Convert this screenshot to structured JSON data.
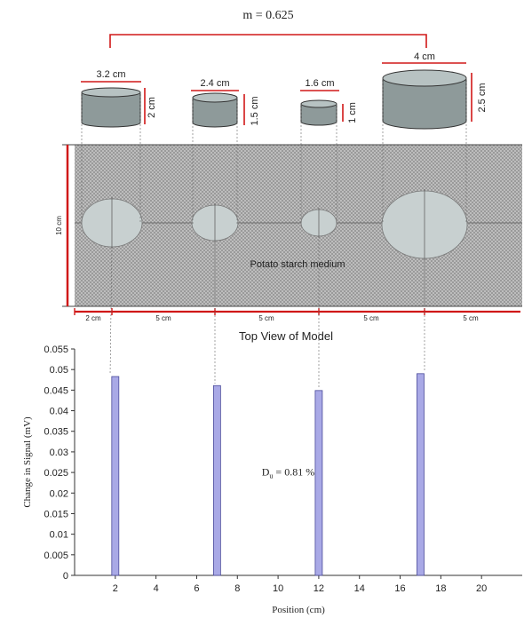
{
  "model": {
    "m_label": "m = 0.625",
    "cylinders": [
      {
        "diameter_label": "3.2 cm",
        "height_label": "2 cm"
      },
      {
        "diameter_label": "2.4 cm",
        "height_label": "1.5 cm"
      },
      {
        "diameter_label": "1.6 cm",
        "height_label": "1 cm"
      },
      {
        "diameter_label": "4 cm",
        "height_label": "2.5 cm"
      }
    ],
    "width_label": "10 cm",
    "medium_label": "Potato starch medium",
    "spacing_labels": [
      "2 cm",
      "5 cm",
      "5 cm",
      "5 cm",
      "5 cm"
    ],
    "caption": "Top View of Model",
    "colors": {
      "red": "#d01818",
      "cyl_side": "#8e9a9a",
      "cyl_top": "#b7c2c2",
      "mesh_bg": "#c9c9c9",
      "bar": "#a9a9e6",
      "bar_stroke": "#4a4a9a"
    }
  },
  "chart_data": {
    "type": "bar",
    "xlabel": "Position (cm)",
    "ylabel": "Change in Signal (mV)",
    "xlim": [
      0,
      22
    ],
    "ylim": [
      0,
      0.055
    ],
    "x_ticks": [
      2,
      4,
      6,
      8,
      10,
      12,
      14,
      16,
      18,
      20
    ],
    "y_ticks": [
      0,
      0.005,
      0.01,
      0.015,
      0.02,
      0.025,
      0.03,
      0.035,
      0.04,
      0.045,
      0.05,
      0.055
    ],
    "y_tick_labels": [
      "0",
      "0.005",
      "0.01",
      "0.015",
      "0.02",
      "0.025",
      "0.03",
      "0.035",
      "0.04",
      "0.045",
      "0.05",
      "0.055"
    ],
    "x": [
      2,
      7,
      12,
      17
    ],
    "values": [
      0.0483,
      0.0461,
      0.0449,
      0.049
    ],
    "annotation": "D = 0.81 %",
    "annotation_base": "D",
    "annotation_sub": "u",
    "annotation_rest": " = 0.81 %",
    "grid": false
  }
}
